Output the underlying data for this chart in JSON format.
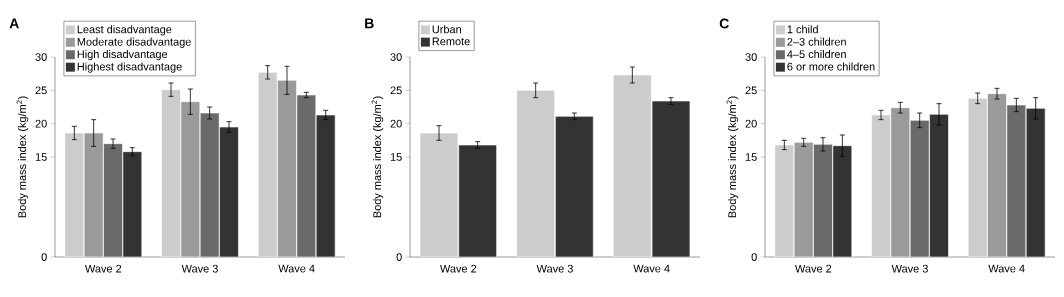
{
  "chart_data": [
    {
      "type": "bar",
      "title": "A",
      "ylabel": "Body mass index (kg/m$^{2}$)",
      "categories": [
        "Wave 2",
        "Wave 3",
        "Wave 4"
      ],
      "series": [
        {
          "name": "Least disadvantage",
          "color": "#cccccc",
          "values": [
            18.6,
            25.1,
            27.7
          ],
          "errors": [
            1.0,
            1.0,
            1.0
          ]
        },
        {
          "name": "Moderate disadvantage",
          "color": "#9a9a9a",
          "values": [
            18.6,
            23.3,
            26.5
          ],
          "errors": [
            2.0,
            1.9,
            2.1
          ]
        },
        {
          "name": "High disadvantage",
          "color": "#6a6a6a",
          "values": [
            17.0,
            21.6,
            24.3
          ],
          "errors": [
            0.7,
            0.9,
            0.4
          ]
        },
        {
          "name": "Highest disadvantage",
          "color": "#333333",
          "values": [
            15.8,
            19.5,
            21.3
          ],
          "errors": [
            0.6,
            0.8,
            0.7
          ]
        }
      ],
      "ylim": [
        0,
        30
      ],
      "yticks": [
        0,
        15,
        20,
        25,
        30
      ],
      "legend": "top left"
    },
    {
      "type": "bar",
      "title": "B",
      "ylabel": "Body mass index (kg/m$^{2}$)",
      "categories": [
        "Wave 2",
        "Wave 3",
        "Wave 4"
      ],
      "series": [
        {
          "name": "Urban",
          "color": "#cccccc",
          "values": [
            18.6,
            25.0,
            27.3
          ],
          "errors": [
            1.1,
            1.1,
            1.2
          ]
        },
        {
          "name": "Remote",
          "color": "#333333",
          "values": [
            16.8,
            21.1,
            23.4
          ],
          "errors": [
            0.5,
            0.5,
            0.5
          ]
        }
      ],
      "ylim": [
        0,
        30
      ],
      "yticks": [
        0,
        15,
        20,
        25,
        30
      ],
      "legend": "top left"
    },
    {
      "type": "bar",
      "title": "C",
      "ylabel": "Body mass index (kg/m$^{2}$)",
      "categories": [
        "Wave 2",
        "Wave 3",
        "Wave 4"
      ],
      "series": [
        {
          "name": "1 child",
          "color": "#cccccc",
          "values": [
            16.8,
            21.3,
            23.8
          ],
          "errors": [
            0.7,
            0.7,
            0.8
          ]
        },
        {
          "name": "2–3 children",
          "color": "#9a9a9a",
          "values": [
            17.2,
            22.4,
            24.5
          ],
          "errors": [
            0.6,
            0.8,
            0.8
          ]
        },
        {
          "name": "4–5 children",
          "color": "#6a6a6a",
          "values": [
            16.9,
            20.5,
            22.8
          ],
          "errors": [
            1.0,
            1.1,
            1.0
          ]
        },
        {
          "name": "6 or more children",
          "color": "#333333",
          "values": [
            16.7,
            21.4,
            22.3
          ],
          "errors": [
            1.6,
            1.6,
            1.6
          ]
        }
      ],
      "ylim": [
        0,
        30
      ],
      "yticks": [
        0,
        15,
        20,
        25,
        30
      ],
      "legend": "top left"
    }
  ]
}
